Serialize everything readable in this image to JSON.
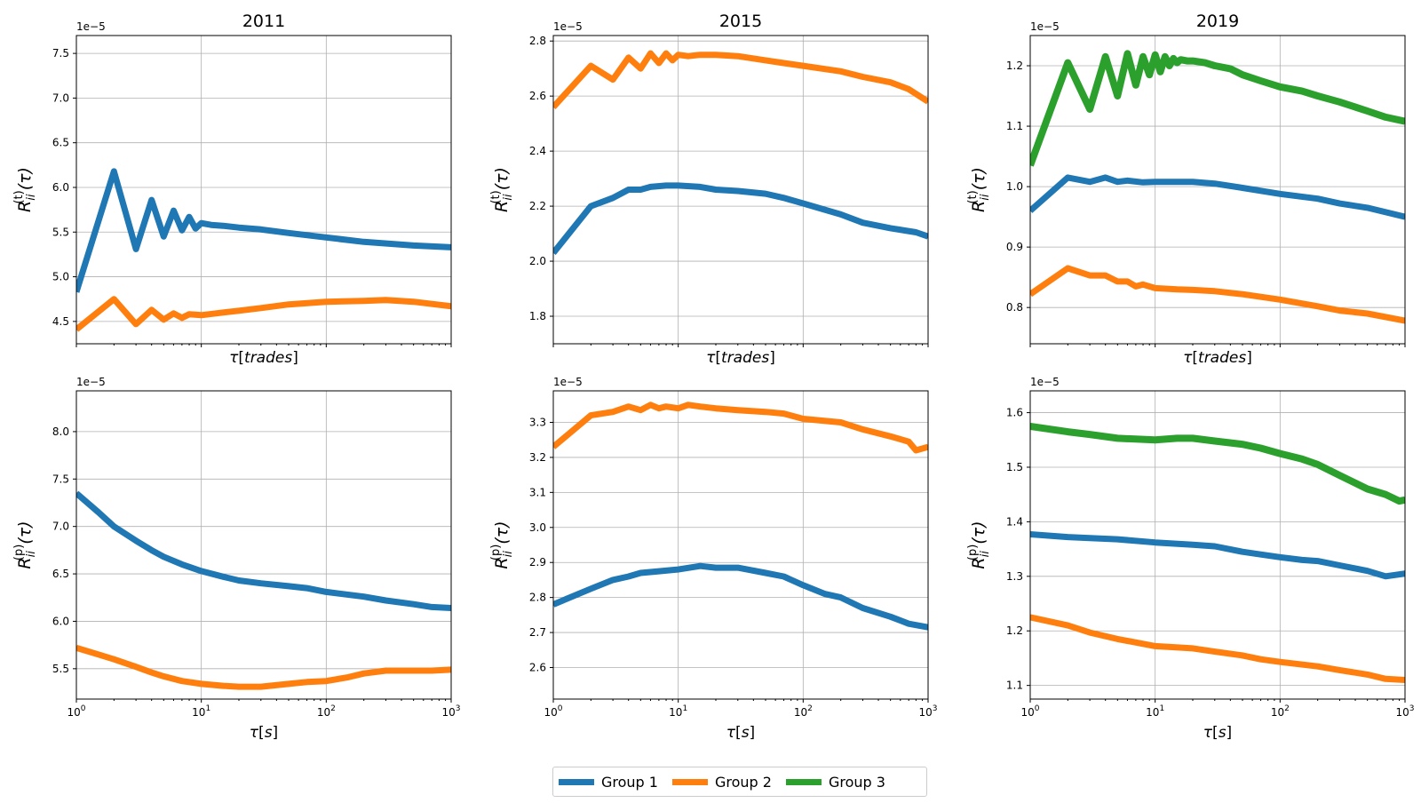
{
  "colors": {
    "group1": "#1f77b4",
    "group2": "#ff7f0e",
    "group3": "#2ca02c"
  },
  "legend": [
    {
      "label": "Group 1",
      "color": "#1f77b4"
    },
    {
      "label": "Group 2",
      "color": "#ff7f0e"
    },
    {
      "label": "Group 3",
      "color": "#2ca02c"
    }
  ],
  "chart_data": [
    {
      "type": "line",
      "title": "2011",
      "xlabel": "τ[trades]",
      "ylabel_var": "t",
      "xscale": "log",
      "xlim": [
        1,
        1000
      ],
      "ylim": [
        4.25,
        7.7
      ],
      "y_multiplier": "1e−5",
      "yticks": [
        4.5,
        5.0,
        5.5,
        6.0,
        6.5,
        7.0,
        7.5
      ],
      "ytick_labels": [
        "4.5",
        "5.0",
        "5.5",
        "6.0",
        "6.5",
        "7.0",
        "7.5"
      ],
      "show_xticklabels": false,
      "grid": true,
      "series": [
        {
          "name": "Group 1",
          "color": "#1f77b4",
          "width": 7,
          "x": [
            1,
            2,
            3,
            4,
            5,
            6,
            7,
            8,
            9,
            10,
            12,
            15,
            20,
            30,
            50,
            100,
            200,
            500,
            1000
          ],
          "y": [
            4.83,
            6.18,
            5.31,
            5.86,
            5.45,
            5.74,
            5.52,
            5.67,
            5.54,
            5.6,
            5.58,
            5.57,
            5.55,
            5.53,
            5.49,
            5.44,
            5.39,
            5.35,
            5.33
          ]
        },
        {
          "name": "Group 2",
          "color": "#ff7f0e",
          "width": 7,
          "x": [
            1,
            2,
            3,
            4,
            5,
            6,
            7,
            8,
            10,
            15,
            20,
            30,
            50,
            100,
            200,
            300,
            500,
            1000
          ],
          "y": [
            4.41,
            4.75,
            4.47,
            4.63,
            4.52,
            4.59,
            4.54,
            4.58,
            4.57,
            4.6,
            4.62,
            4.65,
            4.69,
            4.72,
            4.73,
            4.74,
            4.72,
            4.67
          ]
        }
      ]
    },
    {
      "type": "line",
      "title": "2015",
      "xlabel": "τ[trades]",
      "ylabel_var": "t",
      "xscale": "log",
      "xlim": [
        1,
        1000
      ],
      "ylim": [
        1.7,
        2.82
      ],
      "y_multiplier": "1e−5",
      "yticks": [
        1.8,
        2.0,
        2.2,
        2.4,
        2.6,
        2.8
      ],
      "ytick_labels": [
        "1.8",
        "2.0",
        "2.2",
        "2.4",
        "2.6",
        "2.8"
      ],
      "show_xticklabels": false,
      "grid": true,
      "series": [
        {
          "name": "Group 1",
          "color": "#1f77b4",
          "width": 7,
          "x": [
            1,
            2,
            3,
            4,
            5,
            6,
            8,
            10,
            15,
            20,
            30,
            50,
            70,
            100,
            200,
            300,
            500,
            800,
            1000
          ],
          "y": [
            2.03,
            2.2,
            2.23,
            2.26,
            2.26,
            2.27,
            2.275,
            2.275,
            2.27,
            2.26,
            2.255,
            2.245,
            2.23,
            2.21,
            2.17,
            2.14,
            2.12,
            2.105,
            2.09
          ]
        },
        {
          "name": "Group 2",
          "color": "#ff7f0e",
          "width": 7,
          "x": [
            1,
            2,
            3,
            4,
            5,
            6,
            7,
            8,
            9,
            10,
            12,
            15,
            20,
            30,
            50,
            70,
            100,
            200,
            300,
            500,
            700,
            1000
          ],
          "y": [
            2.56,
            2.71,
            2.66,
            2.74,
            2.7,
            2.755,
            2.72,
            2.755,
            2.73,
            2.75,
            2.745,
            2.75,
            2.75,
            2.745,
            2.73,
            2.72,
            2.71,
            2.69,
            2.67,
            2.65,
            2.625,
            2.58
          ]
        }
      ]
    },
    {
      "type": "line",
      "title": "2019",
      "xlabel": "τ[trades]",
      "ylabel_var": "t",
      "xscale": "log",
      "xlim": [
        1,
        1000
      ],
      "ylim": [
        0.74,
        1.25
      ],
      "y_multiplier": "1e−5",
      "yticks": [
        0.8,
        0.9,
        1.0,
        1.1,
        1.2
      ],
      "ytick_labels": [
        "0.8",
        "0.9",
        "1.0",
        "1.1",
        "1.2"
      ],
      "show_xticklabels": false,
      "grid": true,
      "series": [
        {
          "name": "Group 1",
          "color": "#1f77b4",
          "width": 7,
          "x": [
            1,
            2,
            3,
            4,
            5,
            6,
            8,
            10,
            15,
            20,
            30,
            50,
            100,
            200,
            300,
            500,
            1000
          ],
          "y": [
            0.96,
            1.015,
            1.008,
            1.015,
            1.008,
            1.01,
            1.007,
            1.008,
            1.008,
            1.008,
            1.005,
            0.998,
            0.988,
            0.98,
            0.972,
            0.965,
            0.95
          ]
        },
        {
          "name": "Group 2",
          "color": "#ff7f0e",
          "width": 7,
          "x": [
            1,
            2,
            3,
            4,
            5,
            6,
            7,
            8,
            10,
            15,
            20,
            30,
            50,
            100,
            200,
            300,
            500,
            1000
          ],
          "y": [
            0.822,
            0.865,
            0.853,
            0.853,
            0.843,
            0.843,
            0.835,
            0.838,
            0.832,
            0.83,
            0.829,
            0.827,
            0.822,
            0.813,
            0.802,
            0.795,
            0.79,
            0.778
          ]
        },
        {
          "name": "Group 3",
          "color": "#2ca02c",
          "width": 8,
          "x": [
            1,
            2,
            3,
            4,
            5,
            6,
            7,
            8,
            9,
            10,
            11,
            12,
            13,
            14,
            15,
            16,
            18,
            20,
            25,
            30,
            40,
            50,
            70,
            100,
            150,
            200,
            300,
            500,
            700,
            1000
          ],
          "y": [
            1.035,
            1.205,
            1.128,
            1.215,
            1.15,
            1.22,
            1.168,
            1.215,
            1.185,
            1.218,
            1.19,
            1.215,
            1.2,
            1.212,
            1.205,
            1.21,
            1.208,
            1.208,
            1.205,
            1.2,
            1.195,
            1.185,
            1.175,
            1.165,
            1.158,
            1.15,
            1.14,
            1.125,
            1.115,
            1.108
          ]
        }
      ]
    },
    {
      "type": "line",
      "title": "",
      "xlabel": "τ[s]",
      "ylabel_var": "p",
      "xscale": "log",
      "xlim": [
        1,
        1000
      ],
      "ylim": [
        5.18,
        8.43
      ],
      "y_multiplier": "1e−5",
      "yticks": [
        5.5,
        6.0,
        6.5,
        7.0,
        7.5,
        8.0
      ],
      "ytick_labels": [
        "5.5",
        "6.0",
        "6.5",
        "7.0",
        "7.5",
        "8.0"
      ],
      "show_xticklabels": true,
      "grid": true,
      "series": [
        {
          "name": "Group 1",
          "color": "#1f77b4",
          "width": 7,
          "x": [
            1,
            1.5,
            2,
            3,
            4,
            5,
            7,
            10,
            15,
            20,
            30,
            50,
            70,
            100,
            200,
            300,
            500,
            700,
            1000
          ],
          "y": [
            7.35,
            7.15,
            7.0,
            6.85,
            6.75,
            6.68,
            6.6,
            6.53,
            6.47,
            6.43,
            6.4,
            6.37,
            6.35,
            6.31,
            6.26,
            6.22,
            6.18,
            6.15,
            6.14
          ]
        },
        {
          "name": "Group 2",
          "color": "#ff7f0e",
          "width": 7,
          "x": [
            1,
            1.5,
            2,
            3,
            4,
            5,
            7,
            10,
            15,
            20,
            30,
            50,
            70,
            100,
            150,
            200,
            300,
            500,
            700,
            1000
          ],
          "y": [
            5.72,
            5.65,
            5.6,
            5.52,
            5.46,
            5.42,
            5.37,
            5.34,
            5.32,
            5.31,
            5.31,
            5.34,
            5.36,
            5.37,
            5.41,
            5.45,
            5.48,
            5.48,
            5.48,
            5.49
          ]
        }
      ]
    },
    {
      "type": "line",
      "title": "",
      "xlabel": "τ[s]",
      "ylabel_var": "p",
      "xscale": "log",
      "xlim": [
        1,
        1000
      ],
      "ylim": [
        2.51,
        3.39
      ],
      "y_multiplier": "1e−5",
      "yticks": [
        2.6,
        2.7,
        2.8,
        2.9,
        3.0,
        3.1,
        3.2,
        3.3
      ],
      "ytick_labels": [
        "2.6",
        "2.7",
        "2.8",
        "2.9",
        "3.0",
        "3.1",
        "3.2",
        "3.3"
      ],
      "show_xticklabels": true,
      "grid": true,
      "series": [
        {
          "name": "Group 1",
          "color": "#1f77b4",
          "width": 7,
          "x": [
            1,
            2,
            3,
            4,
            5,
            7,
            10,
            15,
            20,
            30,
            50,
            70,
            100,
            150,
            200,
            300,
            500,
            700,
            1000
          ],
          "y": [
            2.78,
            2.825,
            2.85,
            2.86,
            2.87,
            2.875,
            2.88,
            2.89,
            2.885,
            2.885,
            2.87,
            2.86,
            2.835,
            2.81,
            2.8,
            2.77,
            2.745,
            2.725,
            2.715
          ]
        },
        {
          "name": "Group 2",
          "color": "#ff7f0e",
          "width": 7,
          "x": [
            1,
            2,
            3,
            4,
            5,
            6,
            7,
            8,
            10,
            12,
            15,
            20,
            30,
            50,
            70,
            100,
            200,
            300,
            500,
            700,
            800,
            1000
          ],
          "y": [
            3.23,
            3.32,
            3.33,
            3.345,
            3.335,
            3.35,
            3.34,
            3.345,
            3.34,
            3.35,
            3.345,
            3.34,
            3.335,
            3.33,
            3.325,
            3.31,
            3.3,
            3.28,
            3.26,
            3.245,
            3.22,
            3.23
          ]
        }
      ]
    },
    {
      "type": "line",
      "title": "",
      "xlabel": "τ[s]",
      "ylabel_var": "p",
      "xscale": "log",
      "xlim": [
        1,
        1000
      ],
      "ylim": [
        1.075,
        1.64
      ],
      "y_multiplier": "1e−5",
      "yticks": [
        1.1,
        1.2,
        1.3,
        1.4,
        1.5,
        1.6
      ],
      "ytick_labels": [
        "1.1",
        "1.2",
        "1.3",
        "1.4",
        "1.5",
        "1.6"
      ],
      "show_xticklabels": true,
      "grid": true,
      "series": [
        {
          "name": "Group 1",
          "color": "#1f77b4",
          "width": 7,
          "x": [
            1,
            2,
            3,
            5,
            10,
            20,
            30,
            50,
            70,
            100,
            150,
            200,
            300,
            500,
            700,
            1000
          ],
          "y": [
            1.377,
            1.372,
            1.37,
            1.368,
            1.362,
            1.358,
            1.355,
            1.345,
            1.34,
            1.335,
            1.33,
            1.328,
            1.32,
            1.31,
            1.3,
            1.305
          ]
        },
        {
          "name": "Group 2",
          "color": "#ff7f0e",
          "width": 7,
          "x": [
            1,
            2,
            3,
            5,
            10,
            20,
            30,
            50,
            70,
            100,
            200,
            300,
            500,
            700,
            1000
          ],
          "y": [
            1.225,
            1.21,
            1.197,
            1.185,
            1.172,
            1.168,
            1.162,
            1.155,
            1.148,
            1.143,
            1.135,
            1.128,
            1.12,
            1.112,
            1.11
          ]
        },
        {
          "name": "Group 3",
          "color": "#2ca02c",
          "width": 8,
          "x": [
            1,
            2,
            3,
            5,
            10,
            15,
            20,
            30,
            50,
            70,
            100,
            150,
            200,
            300,
            500,
            700,
            900,
            1000
          ],
          "y": [
            1.575,
            1.565,
            1.56,
            1.553,
            1.55,
            1.553,
            1.553,
            1.548,
            1.542,
            1.535,
            1.525,
            1.515,
            1.505,
            1.485,
            1.46,
            1.45,
            1.438,
            1.44
          ]
        }
      ]
    }
  ]
}
